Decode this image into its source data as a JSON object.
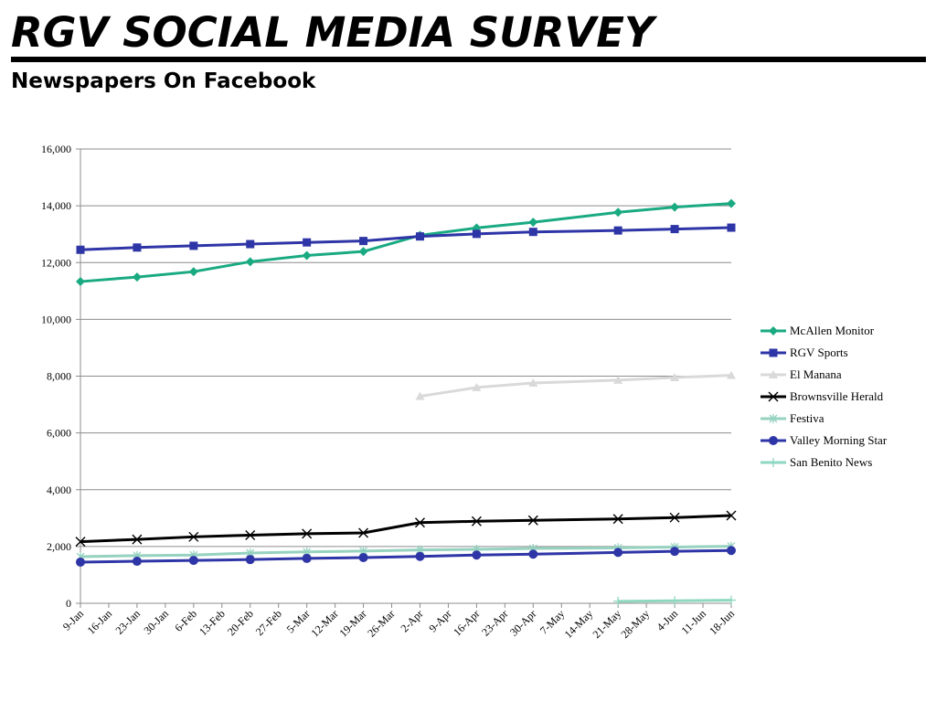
{
  "header": {
    "title": "RGV SOCIAL MEDIA SURVEY",
    "subtitle": "Newspapers On Facebook"
  },
  "chart_data": {
    "type": "line",
    "title": "",
    "xlabel": "",
    "ylabel": "",
    "ylim": [
      0,
      16000
    ],
    "yticks": [
      0,
      2000,
      4000,
      6000,
      8000,
      10000,
      12000,
      14000,
      16000
    ],
    "grid": true,
    "legend_position": "right",
    "categories": [
      "9-Jan",
      "16-Jan",
      "23-Jan",
      "30-Jan",
      "6-Feb",
      "13-Feb",
      "20-Feb",
      "27-Feb",
      "5-Mar",
      "12-Mar",
      "19-Mar",
      "26-Mar",
      "2-Apr",
      "9-Apr",
      "16-Apr",
      "23-Apr",
      "30-Apr",
      "7-May",
      "14-May",
      "21-May",
      "28-May",
      "4-Jun",
      "11-Jun",
      "18-Jun"
    ],
    "series": [
      {
        "name": "McAllen Monitor",
        "color": "#1aaa82",
        "marker": "diamond",
        "values": [
          11330,
          null,
          11490,
          null,
          11680,
          null,
          12030,
          null,
          12250,
          null,
          12390,
          null,
          12960,
          null,
          13220,
          null,
          13420,
          null,
          null,
          13770,
          null,
          13950,
          null,
          14080
        ]
      },
      {
        "name": "RGV Sports",
        "color": "#2e35a6",
        "marker": "square",
        "values": [
          12450,
          null,
          12530,
          null,
          12590,
          null,
          12650,
          null,
          12710,
          null,
          12760,
          null,
          12920,
          null,
          13010,
          null,
          13080,
          null,
          null,
          13130,
          null,
          13180,
          null,
          13230
        ]
      },
      {
        "name": "El Manana",
        "color": "#d9d9d9",
        "marker": "triangle",
        "values": [
          null,
          null,
          null,
          null,
          null,
          null,
          null,
          null,
          null,
          null,
          null,
          null,
          7290,
          null,
          7600,
          null,
          7760,
          null,
          null,
          7860,
          null,
          7950,
          null,
          8030
        ]
      },
      {
        "name": "Brownsville Herald",
        "color": "#000000",
        "marker": "x",
        "values": [
          2170,
          null,
          2250,
          null,
          2340,
          null,
          2400,
          null,
          2450,
          null,
          2480,
          null,
          2840,
          null,
          2890,
          null,
          2920,
          null,
          null,
          2970,
          null,
          3020,
          null,
          3090
        ]
      },
      {
        "name": "Festiva",
        "color": "#96d2c0",
        "marker": "star",
        "values": [
          1640,
          null,
          1680,
          null,
          1700,
          null,
          1770,
          null,
          1810,
          null,
          1840,
          null,
          1880,
          null,
          1900,
          null,
          1930,
          null,
          null,
          1950,
          null,
          1980,
          null,
          2010
        ]
      },
      {
        "name": "Valley Morning Star",
        "color": "#2e35a6",
        "marker": "circle",
        "values": [
          1450,
          null,
          1480,
          null,
          1510,
          null,
          1540,
          null,
          1580,
          null,
          1610,
          null,
          1650,
          null,
          1700,
          null,
          1730,
          null,
          null,
          1790,
          null,
          1830,
          null,
          1860
        ]
      },
      {
        "name": "San Benito News",
        "color": "#8ed7c0",
        "marker": "plus",
        "values": [
          null,
          null,
          null,
          null,
          null,
          null,
          null,
          null,
          null,
          null,
          null,
          null,
          null,
          null,
          null,
          null,
          null,
          null,
          null,
          70,
          null,
          90,
          null,
          110
        ]
      }
    ]
  }
}
